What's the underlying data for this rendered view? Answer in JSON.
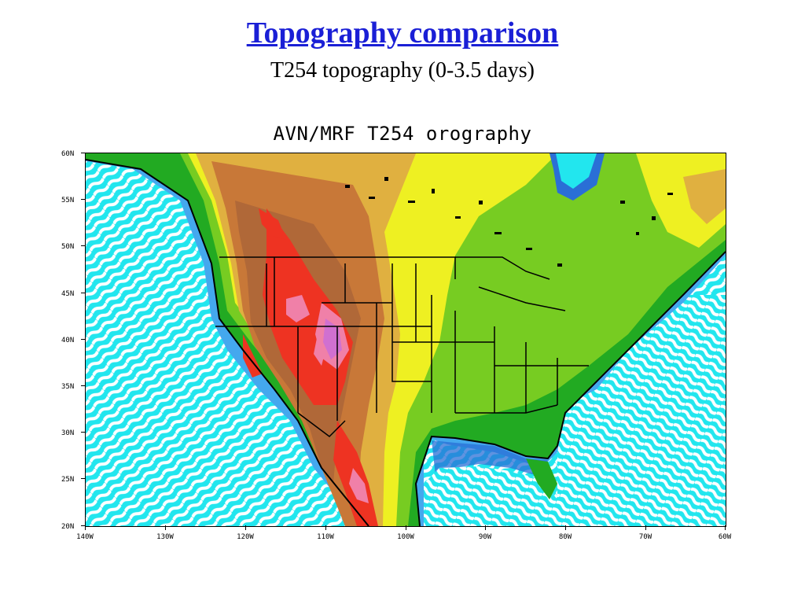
{
  "slide": {
    "title": "Topography comparison",
    "subtitle": "T254 topography (0-3.5 days)"
  },
  "map": {
    "title": "AVN/MRF T254 orography",
    "lat_labels": [
      "60N",
      "55N",
      "50N",
      "45N",
      "40N",
      "35N",
      "30N",
      "25N",
      "20N"
    ],
    "lon_labels": [
      "140W",
      "130W",
      "120W",
      "110W",
      "100W",
      "90W",
      "80W",
      "70W",
      "60W"
    ],
    "lat_range": [
      20,
      60
    ],
    "lon_range": [
      -140,
      -60
    ],
    "colors": {
      "ocean_light": "#22e6ee",
      "ocean_stripe": "#ffffff",
      "ocean_deep": "#2a6fd6",
      "coast_blue": "#44a8ee",
      "lowland_green": "#22aa22",
      "green": "#77cc22",
      "yellow": "#eef022",
      "tan": "#e0b040",
      "orange_brown": "#c87838",
      "brown": "#b06838",
      "red": "#ee3322",
      "pink": "#f080a8",
      "purple": "#d070d0",
      "coast_line": "#000000"
    }
  }
}
